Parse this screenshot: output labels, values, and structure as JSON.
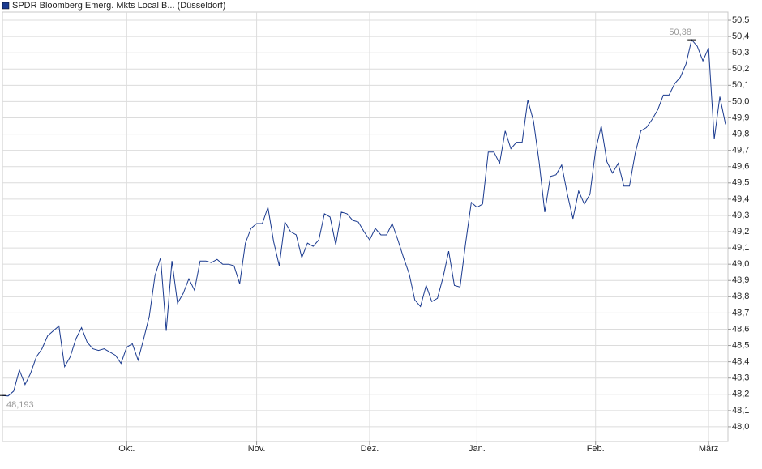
{
  "chart_data": {
    "type": "line",
    "series": [
      {
        "name": "SPDR Bloomberg Emerg. Mkts Local B... (Düsseldorf)",
        "color": "#1a3a8f",
        "values": [
          48.193,
          48.19,
          48.22,
          48.35,
          48.26,
          48.33,
          48.43,
          48.48,
          48.56,
          48.59,
          48.62,
          48.37,
          48.43,
          48.54,
          48.61,
          48.52,
          48.48,
          48.47,
          48.48,
          48.46,
          48.44,
          48.39,
          48.49,
          48.51,
          48.41,
          48.54,
          48.68,
          48.93,
          49.04,
          48.59,
          49.02,
          48.76,
          48.82,
          48.91,
          48.84,
          49.02,
          49.02,
          49.01,
          49.03,
          49.0,
          49.0,
          48.99,
          48.88,
          49.13,
          49.22,
          49.25,
          49.25,
          49.35,
          49.14,
          48.99,
          49.26,
          49.2,
          49.18,
          49.04,
          49.13,
          49.11,
          49.15,
          49.31,
          49.29,
          49.12,
          49.32,
          49.31,
          49.27,
          49.26,
          49.2,
          49.15,
          49.22,
          49.18,
          49.18,
          49.25,
          49.15,
          49.04,
          48.94,
          48.78,
          48.74,
          48.87,
          48.77,
          48.79,
          48.92,
          49.08,
          48.87,
          48.86,
          49.13,
          49.38,
          49.35,
          49.37,
          49.69,
          49.69,
          49.62,
          49.82,
          49.71,
          49.75,
          49.75,
          50.01,
          49.88,
          49.63,
          49.32,
          49.54,
          49.55,
          49.61,
          49.43,
          49.28,
          49.45,
          49.37,
          49.43,
          49.7,
          49.85,
          49.63,
          49.56,
          49.62,
          49.48,
          49.48,
          49.68,
          49.82,
          49.84,
          49.89,
          49.95,
          50.04,
          50.04,
          50.11,
          50.15,
          50.23,
          50.38,
          50.34,
          50.25,
          50.33,
          49.77,
          50.03,
          49.86
        ]
      }
    ],
    "xlim": [
      0,
      128
    ],
    "xticks": [
      {
        "value": 22,
        "label": "Okt."
      },
      {
        "value": 45,
        "label": "Nov."
      },
      {
        "value": 65,
        "label": "Dez."
      },
      {
        "value": 84,
        "label": "Jan."
      },
      {
        "value": 105,
        "label": "Feb."
      },
      {
        "value": 125,
        "label": "März"
      }
    ],
    "ylim": [
      47.91,
      50.55
    ],
    "yticks": [
      {
        "value": 48.0,
        "label": "48,0"
      },
      {
        "value": 48.1,
        "label": "48,1"
      },
      {
        "value": 48.2,
        "label": "48,2"
      },
      {
        "value": 48.3,
        "label": "48,3"
      },
      {
        "value": 48.4,
        "label": "48,4"
      },
      {
        "value": 48.5,
        "label": "48,5"
      },
      {
        "value": 48.6,
        "label": "48,6"
      },
      {
        "value": 48.7,
        "label": "48,7"
      },
      {
        "value": 48.8,
        "label": "48,8"
      },
      {
        "value": 48.9,
        "label": "48,9"
      },
      {
        "value": 49.0,
        "label": "49,0"
      },
      {
        "value": 49.1,
        "label": "49,1"
      },
      {
        "value": 49.2,
        "label": "49,2"
      },
      {
        "value": 49.3,
        "label": "49,3"
      },
      {
        "value": 49.4,
        "label": "49,4"
      },
      {
        "value": 49.5,
        "label": "49,5"
      },
      {
        "value": 49.6,
        "label": "49,6"
      },
      {
        "value": 49.7,
        "label": "49,7"
      },
      {
        "value": 49.8,
        "label": "49,8"
      },
      {
        "value": 49.9,
        "label": "49,9"
      },
      {
        "value": 50.0,
        "label": "50,0"
      },
      {
        "value": 50.1,
        "label": "50,1"
      },
      {
        "value": 50.2,
        "label": "50,2"
      },
      {
        "value": 50.3,
        "label": "50,3"
      },
      {
        "value": 50.4,
        "label": "50,4"
      },
      {
        "value": 50.5,
        "label": "50,5"
      }
    ],
    "grid": true,
    "annotations": [
      {
        "label": "48,193",
        "value": 48.193,
        "x": 0
      },
      {
        "label": "50,38",
        "value": 50.38,
        "x": 122
      }
    ]
  }
}
